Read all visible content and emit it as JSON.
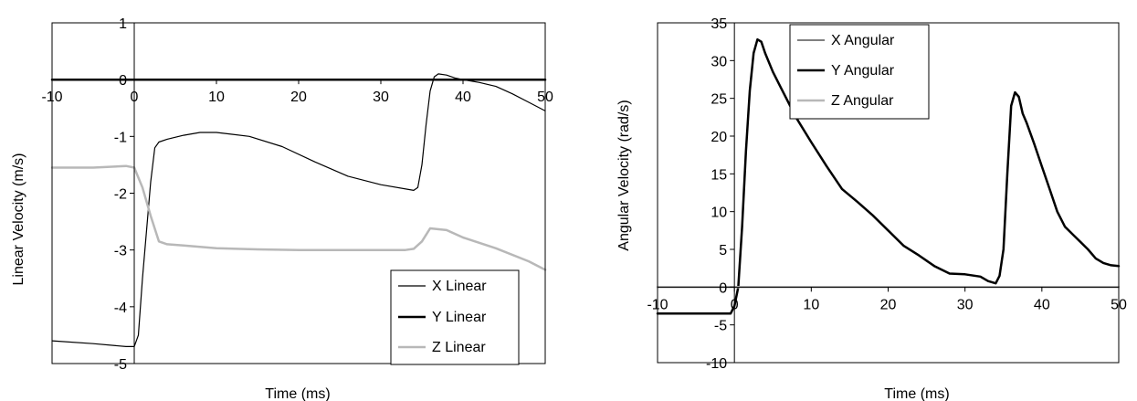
{
  "chart_data": [
    {
      "type": "line",
      "title": "",
      "xlabel": "Time (ms)",
      "ylabel": "Linear Velocity (m/s)",
      "xlim": [
        -10,
        50
      ],
      "ylim": [
        -5,
        1
      ],
      "xticks": [
        -10,
        0,
        10,
        20,
        30,
        40,
        50
      ],
      "yticks": [
        -5,
        -4,
        -3,
        -2,
        -1,
        0,
        1
      ],
      "grid": false,
      "legend_position": "bottom-right",
      "series": [
        {
          "name": "X Linear",
          "color": "#000000",
          "width": 1.2,
          "x": [
            -10,
            -5,
            -1,
            0,
            0.5,
            1,
            2,
            2.5,
            3,
            4,
            6,
            8,
            10,
            14,
            18,
            22,
            26,
            30,
            34,
            34.5,
            35,
            35.5,
            36,
            36.5,
            37,
            38,
            39,
            40,
            42,
            44,
            46,
            48,
            50
          ],
          "y": [
            -4.6,
            -4.65,
            -4.7,
            -4.7,
            -4.5,
            -3.5,
            -1.8,
            -1.2,
            -1.1,
            -1.05,
            -0.98,
            -0.93,
            -0.93,
            -1.0,
            -1.18,
            -1.45,
            -1.7,
            -1.85,
            -1.95,
            -1.9,
            -1.5,
            -0.8,
            -0.2,
            0.05,
            0.1,
            0.08,
            0.03,
            0.0,
            -0.05,
            -0.12,
            -0.25,
            -0.4,
            -0.55
          ]
        },
        {
          "name": "Y Linear",
          "color": "#000000",
          "width": 2.5,
          "x": [
            -10,
            50
          ],
          "y": [
            0,
            0
          ]
        },
        {
          "name": "Z Linear",
          "color": "#b8b8b8",
          "width": 2.5,
          "x": [
            -10,
            -5,
            -1,
            0,
            1,
            2,
            3,
            4,
            6,
            10,
            15,
            20,
            25,
            30,
            33,
            34,
            35,
            36,
            38,
            40,
            44,
            48,
            50
          ],
          "y": [
            -1.55,
            -1.55,
            -1.52,
            -1.55,
            -1.9,
            -2.4,
            -2.85,
            -2.9,
            -2.92,
            -2.97,
            -2.99,
            -3.0,
            -3.0,
            -3.0,
            -3.0,
            -2.98,
            -2.85,
            -2.62,
            -2.65,
            -2.78,
            -2.97,
            -3.2,
            -3.35
          ]
        }
      ]
    },
    {
      "type": "line",
      "title": "",
      "xlabel": "Time (ms)",
      "ylabel": "Angular Velocity (rad/s)",
      "xlim": [
        -10,
        50
      ],
      "ylim": [
        -10,
        35
      ],
      "xticks": [
        -10,
        0,
        10,
        20,
        30,
        40,
        50
      ],
      "yticks": [
        -10,
        -5,
        0,
        5,
        10,
        15,
        20,
        25,
        30,
        35
      ],
      "grid": false,
      "legend_position": "top-center",
      "series": [
        {
          "name": "X Angular",
          "color": "#000000",
          "width": 1.0,
          "x": [
            -10,
            50
          ],
          "y": [
            0,
            0
          ]
        },
        {
          "name": "Y Angular",
          "color": "#000000",
          "width": 2.5,
          "x": [
            -10,
            -5,
            -1,
            -0.5,
            0,
            0.5,
            1,
            1.5,
            2,
            2.5,
            3,
            3.5,
            4,
            5,
            6,
            8,
            10,
            12,
            14,
            16,
            18,
            20,
            22,
            24,
            26,
            28,
            30,
            32,
            33,
            34,
            34.5,
            35,
            35.5,
            36,
            36.5,
            37,
            37.5,
            38,
            39,
            40,
            41,
            42,
            43,
            44,
            45,
            46,
            47,
            48,
            49,
            50
          ],
          "y": [
            -3.5,
            -3.5,
            -3.5,
            -3.5,
            -2.5,
            0,
            8,
            18,
            26,
            31,
            32.8,
            32.5,
            31,
            28.5,
            26.5,
            22.5,
            19.2,
            16,
            13,
            11.3,
            9.5,
            7.5,
            5.5,
            4.2,
            2.8,
            1.8,
            1.7,
            1.4,
            0.8,
            0.5,
            1.5,
            5,
            15,
            24,
            25.8,
            25.2,
            23,
            21.8,
            19,
            16,
            13,
            10,
            8,
            7,
            6,
            5,
            3.8,
            3.2,
            2.9,
            2.8
          ]
        },
        {
          "name": "Z Angular",
          "color": "#b8b8b8",
          "width": 2.5,
          "x": [
            -10,
            50
          ],
          "y": [
            0,
            0
          ]
        }
      ]
    }
  ]
}
